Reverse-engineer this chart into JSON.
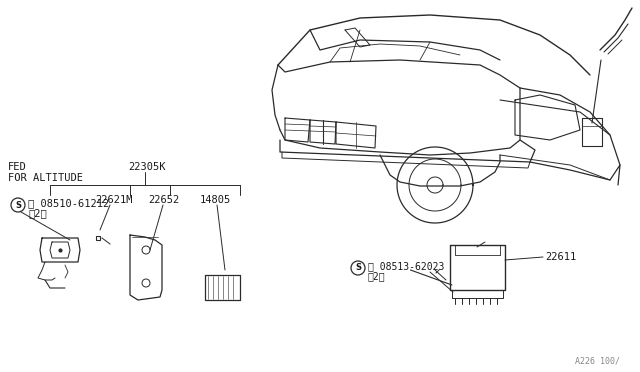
{
  "bg_color": "#ffffff",
  "line_color": "#2a2a2a",
  "text_color": "#1a1a1a",
  "labels": {
    "fed_altitude": "FED\nFOR ALTITUDE",
    "part_22305K": "22305K",
    "bolt_left_line1": "Ⓢ 08510-61212",
    "bolt_left_line2": "（2）",
    "part_22621M": "22621M",
    "part_22652": "22652",
    "part_14805": "14805",
    "bolt_right_line1": "Ⓢ 08513-62023",
    "bolt_right_line2": "（2）",
    "part_22611": "22611",
    "watermark": "A226 100/"
  },
  "figsize": [
    6.4,
    3.72
  ],
  "dpi": 100
}
